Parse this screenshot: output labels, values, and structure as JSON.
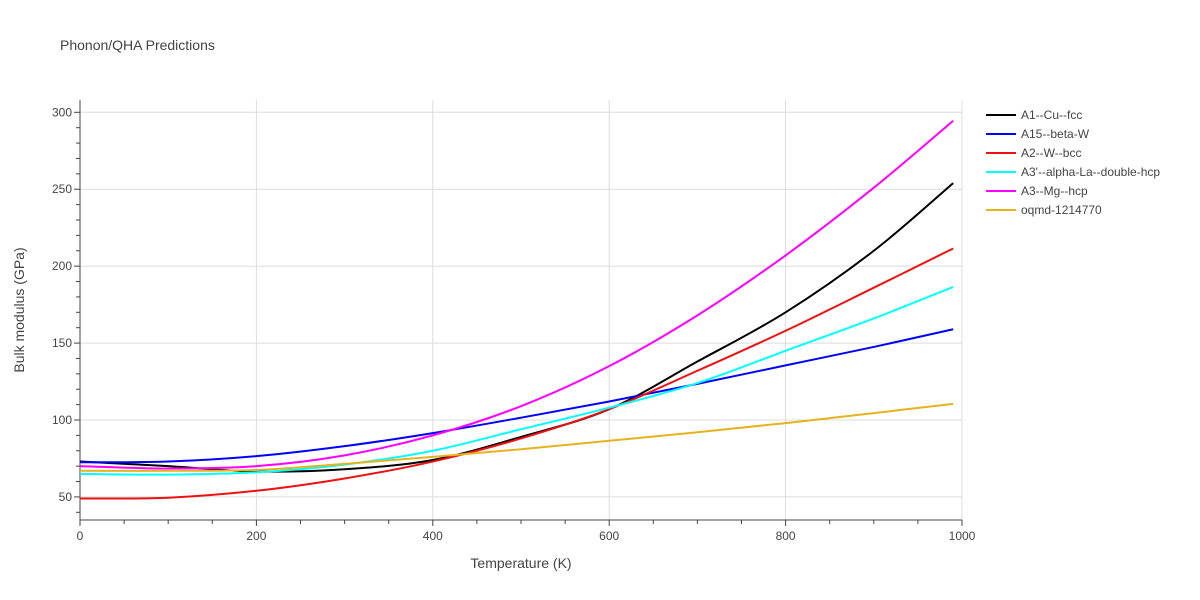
{
  "chart_data": {
    "type": "line",
    "title": "Phonon/QHA Predictions",
    "xlabel": "Temperature (K)",
    "ylabel": "Bulk modulus (GPa)",
    "xlim": [
      0,
      1000
    ],
    "ylim": [
      35,
      308
    ],
    "xticks": [
      0,
      200,
      400,
      600,
      800,
      1000
    ],
    "yticks": [
      50,
      100,
      150,
      200,
      250,
      300
    ],
    "grid": true,
    "legend_position": "right",
    "series": [
      {
        "name": "A1--Cu--fcc",
        "color": "#000000",
        "x": [
          0,
          100,
          200,
          300,
          400,
          500,
          600,
          700,
          800,
          900,
          990
        ],
        "y": [
          73,
          70,
          66.5,
          68,
          74,
          89,
          107,
          138,
          170,
          210,
          254
        ]
      },
      {
        "name": "A15--beta-W",
        "color": "#0000ff",
        "x": [
          0,
          100,
          200,
          300,
          400,
          500,
          600,
          700,
          800,
          900,
          990
        ],
        "y": [
          72.5,
          73,
          76.5,
          83,
          91.5,
          101.5,
          112,
          123.5,
          135.5,
          147.5,
          159
        ]
      },
      {
        "name": "A2--W--bcc",
        "color": "#ee1111",
        "x": [
          0,
          100,
          200,
          300,
          400,
          500,
          600,
          700,
          800,
          900,
          990
        ],
        "y": [
          49,
          49.5,
          54,
          62,
          73,
          88,
          107,
          132,
          158,
          186,
          211.5
        ]
      },
      {
        "name": "A3'--alpha-La--double-hcp",
        "color": "#00ffff",
        "x": [
          0,
          100,
          200,
          300,
          400,
          500,
          600,
          700,
          800,
          900,
          990
        ],
        "y": [
          65,
          64.5,
          66,
          71,
          80,
          94,
          108,
          124,
          145,
          166,
          186.5
        ]
      },
      {
        "name": "A3--Mg--hcp",
        "color": "#ff00ff",
        "x": [
          0,
          100,
          200,
          300,
          400,
          500,
          600,
          700,
          800,
          900,
          990
        ],
        "y": [
          70,
          68.5,
          70,
          77,
          90,
          109,
          135,
          168,
          207,
          251,
          294.5
        ]
      },
      {
        "name": "oqmd-1214770",
        "color": "#e6b31e",
        "x": [
          0,
          100,
          200,
          300,
          400,
          500,
          600,
          700,
          800,
          900,
          990
        ],
        "y": [
          67,
          67,
          67.5,
          71.5,
          76,
          81,
          86.5,
          92,
          98,
          104.5,
          110.5
        ]
      }
    ]
  }
}
